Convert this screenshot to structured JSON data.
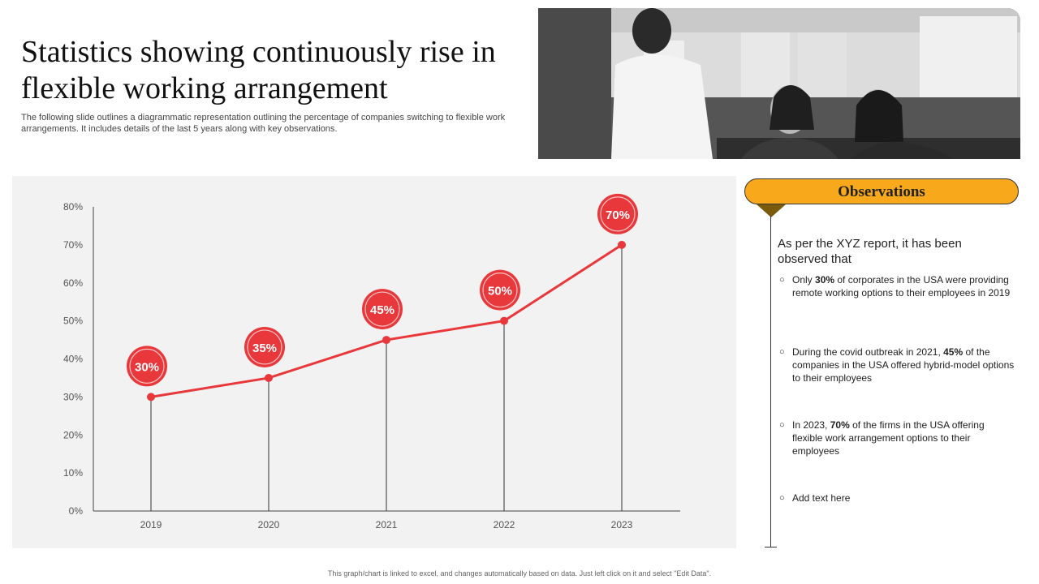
{
  "slide": {
    "title": "Statistics showing continuously rise in flexible working arrangement",
    "subtitle": "The following slide outlines a diagrammatic representation outlining the percentage of companies switching to flexible work arrangements. It includes details of the last 5 years along with key observations.",
    "footer": "This graph/chart is linked to excel, and changes automatically based on data. Just left click on it and select \"Edit Data\"."
  },
  "colors": {
    "accent": "#e8383b",
    "panel": "#f2f2f2",
    "header": "#f7a81b"
  },
  "observations": {
    "header": "Observations",
    "intro": "As per the XYZ report, it has been observed that",
    "items": [
      {
        "pre": "Only ",
        "bold": "30%",
        "post": " of corporates in the USA were providing remote working options to their employees in 2019"
      },
      {
        "pre": "During the covid outbreak in 2021, ",
        "bold": "45%",
        "post": " of the companies in the USA offered hybrid-model options to their employees"
      },
      {
        "pre": "In 2023, ",
        "bold": "70%",
        "post": " of the firms in the USA offering flexible work arrangement options to their employees"
      },
      {
        "pre": "Add text here",
        "bold": "",
        "post": ""
      }
    ]
  },
  "chart_data": {
    "type": "line",
    "categories": [
      "2019",
      "2020",
      "2021",
      "2022",
      "2023"
    ],
    "values": [
      30,
      35,
      45,
      50,
      70
    ],
    "data_labels": [
      "30%",
      "35%",
      "45%",
      "50%",
      "70%"
    ],
    "yticks": [
      "0%",
      "10%",
      "20%",
      "30%",
      "40%",
      "50%",
      "60%",
      "70%",
      "80%"
    ],
    "ylim": [
      0,
      80
    ],
    "grid": false,
    "legend": "none"
  }
}
